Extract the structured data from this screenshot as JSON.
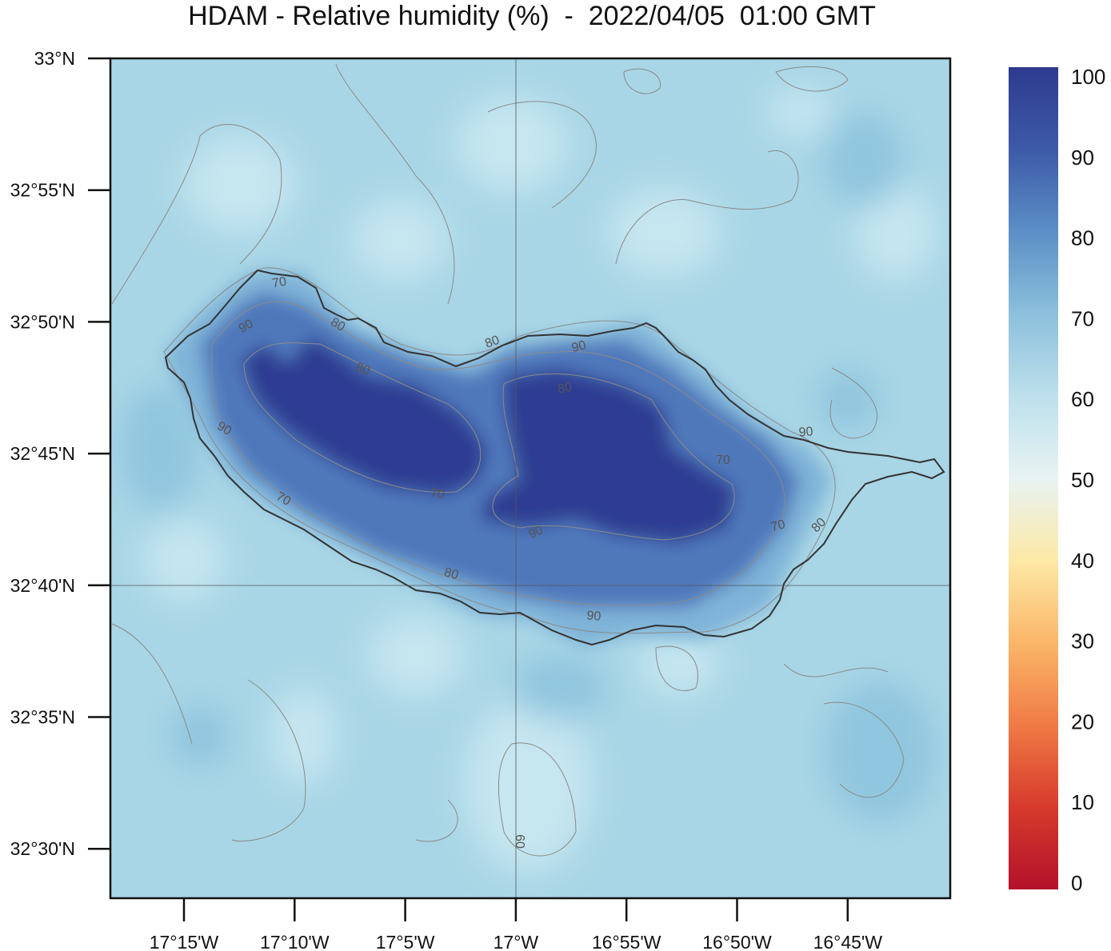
{
  "title": "HDAM - Relative humidity (%)  -  2022/04/05  01:00 GMT",
  "axes": {
    "y_ticks": [
      "33°N",
      "32°55'N",
      "32°50'N",
      "32°45'N",
      "32°40'N",
      "32°35'N",
      "32°30'N"
    ],
    "x_ticks": [
      "17°15'W",
      "17°10'W",
      "17°5'W",
      "17°W",
      "16°55'W",
      "16°50'W",
      "16°45'W"
    ]
  },
  "colorbar": {
    "labels": [
      "100",
      "90",
      "80",
      "70",
      "60",
      "50",
      "40",
      "30",
      "20",
      "10",
      "0"
    ],
    "min": 0,
    "max": 100,
    "colors": [
      "#b3112a",
      "#d73a2c",
      "#f07b45",
      "#fbb668",
      "#fde9a6",
      "#e8f3f3",
      "#bde0ec",
      "#8cc0dc",
      "#5b8fc6",
      "#3d5aa8",
      "#2e3a8f"
    ]
  },
  "field_colors": {
    "sea": "#a9d6e6",
    "sea_light": "#c6e6f0",
    "land_low": "#7fb3d8",
    "land_mid": "#4f78bb",
    "land_high": "#2f3d93",
    "coast": "#333333",
    "contour": "#8a8a8a"
  },
  "contour_labels": [
    "70",
    "80",
    "90",
    "80",
    "90",
    "70",
    "80",
    "90",
    "80",
    "70",
    "90",
    "80",
    "90",
    "70",
    "80",
    "70",
    "60",
    "90"
  ]
}
